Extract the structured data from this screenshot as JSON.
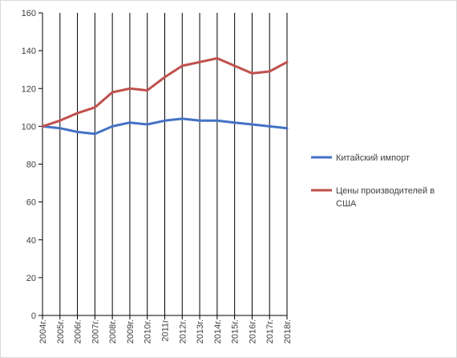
{
  "chart_data": {
    "type": "line",
    "categories": [
      "2004г.",
      "2005г.",
      "2006г.",
      "2007г.",
      "2008г.",
      "2009г.",
      "2010г.",
      "2011г",
      "2012г.",
      "2013г.",
      "2014г.",
      "2015г.",
      "2016г.",
      "2017г.",
      "2018г."
    ],
    "series": [
      {
        "name": "Китайский импорт",
        "color": "#4472c4",
        "values": [
          100,
          99,
          97,
          96,
          100,
          102,
          101,
          103,
          104,
          103,
          103,
          102,
          101,
          100,
          99
        ]
      },
      {
        "name_lines": [
          "Цены производителей  в",
          "США"
        ],
        "color": "#c0504d",
        "values": [
          100,
          103,
          107,
          110,
          118,
          120,
          119,
          126,
          132,
          134,
          136,
          132,
          128,
          129,
          134
        ]
      }
    ],
    "y_ticks": [
      "0",
      "20",
      "40",
      "60",
      "80",
      "100",
      "120",
      "140",
      "160"
    ],
    "ylim": [
      0,
      160
    ],
    "grid": "vertical lines at categories",
    "legend_position": "right"
  }
}
